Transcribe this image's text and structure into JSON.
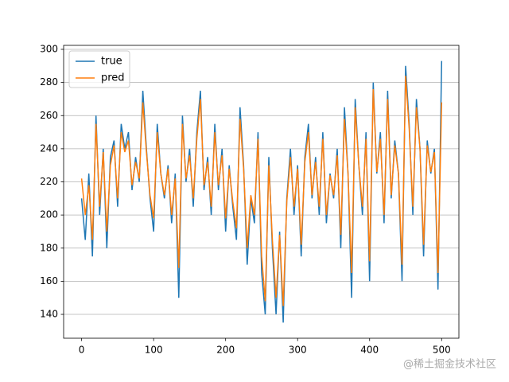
{
  "chart_data": {
    "type": "line",
    "x": [
      0,
      5,
      10,
      15,
      20,
      25,
      30,
      35,
      40,
      45,
      50,
      55,
      60,
      65,
      70,
      75,
      80,
      85,
      90,
      95,
      100,
      105,
      110,
      115,
      120,
      125,
      130,
      135,
      140,
      145,
      150,
      155,
      160,
      165,
      170,
      175,
      180,
      185,
      190,
      195,
      200,
      205,
      210,
      215,
      220,
      225,
      230,
      235,
      240,
      245,
      250,
      255,
      260,
      265,
      270,
      275,
      280,
      285,
      290,
      295,
      300,
      305,
      310,
      315,
      320,
      325,
      330,
      335,
      340,
      345,
      350,
      355,
      360,
      365,
      370,
      375,
      380,
      385,
      390,
      395,
      400,
      405,
      410,
      415,
      420,
      425,
      430,
      435,
      440,
      445,
      450,
      455,
      460,
      465,
      470,
      475,
      480,
      485,
      490,
      495,
      500
    ],
    "series": [
      {
        "name": "true",
        "color": "#1f77b4",
        "values": [
          210,
          185,
          225,
          175,
          260,
          200,
          240,
          180,
          235,
          245,
          205,
          255,
          240,
          250,
          215,
          235,
          220,
          275,
          240,
          210,
          190,
          255,
          225,
          210,
          230,
          195,
          225,
          150,
          260,
          220,
          240,
          205,
          250,
          275,
          215,
          235,
          200,
          255,
          215,
          240,
          190,
          230,
          205,
          185,
          265,
          230,
          170,
          210,
          195,
          250,
          165,
          140,
          235,
          180,
          140,
          190,
          135,
          210,
          240,
          200,
          230,
          175,
          235,
          255,
          210,
          235,
          200,
          250,
          195,
          225,
          210,
          240,
          180,
          265,
          225,
          150,
          270,
          230,
          200,
          250,
          160,
          280,
          225,
          250,
          195,
          275,
          210,
          245,
          225,
          160,
          290,
          255,
          200,
          270,
          240,
          175,
          245,
          225,
          240,
          155,
          293
        ]
      },
      {
        "name": "pred",
        "color": "#ff7f0e",
        "values": [
          222,
          200,
          218,
          185,
          255,
          205,
          238,
          190,
          230,
          242,
          210,
          250,
          238,
          245,
          218,
          232,
          222,
          268,
          238,
          212,
          198,
          250,
          225,
          212,
          228,
          200,
          222,
          168,
          255,
          222,
          236,
          210,
          246,
          270,
          218,
          232,
          205,
          250,
          218,
          236,
          198,
          228,
          208,
          192,
          258,
          228,
          180,
          212,
          200,
          246,
          175,
          148,
          230,
          185,
          150,
          188,
          145,
          208,
          235,
          205,
          228,
          182,
          232,
          250,
          212,
          232,
          205,
          246,
          200,
          224,
          212,
          236,
          188,
          258,
          225,
          165,
          265,
          230,
          205,
          246,
          172,
          276,
          226,
          246,
          200,
          270,
          212,
          242,
          225,
          170,
          284,
          252,
          205,
          265,
          240,
          182,
          242,
          226,
          238,
          165,
          268
        ]
      }
    ],
    "xlim": [
      -25,
      524
    ],
    "ylim": [
      125.6,
      302.4
    ],
    "xticks": [
      0,
      100,
      200,
      300,
      400,
      500
    ],
    "yticks": [
      140,
      160,
      180,
      200,
      220,
      240,
      260,
      280,
      300
    ],
    "grid": true,
    "legend": "upper left"
  },
  "watermark": "@稀土掘金技术社区"
}
